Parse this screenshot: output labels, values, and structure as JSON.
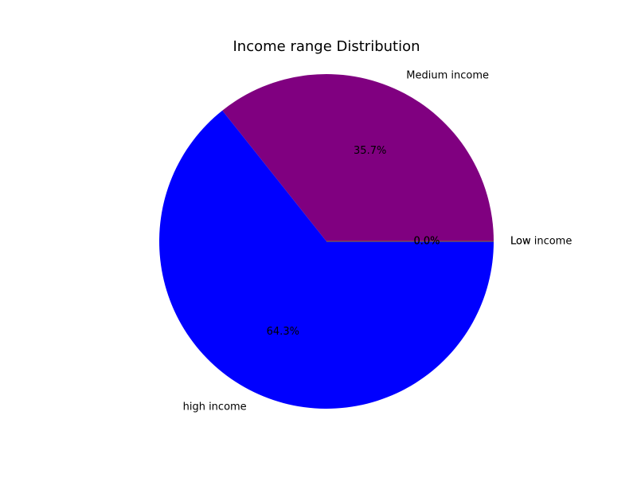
{
  "chart_data": {
    "type": "pie",
    "title": "Income range Distribution",
    "start_angle_deg": 0,
    "direction": "counterclockwise",
    "slices": [
      {
        "label": "Medium income",
        "value": 35.7,
        "pct_label": "35.7%",
        "color": "#800080"
      },
      {
        "label": "high income",
        "value": 64.3,
        "pct_label": "64.3%",
        "color": "#0000ff"
      },
      {
        "label": "Low",
        "value": 0.0,
        "pct_label": "0.0%",
        "color": "#008000"
      },
      {
        "label": "Low income",
        "value": 0.0,
        "pct_label": "0.0%",
        "color": "#ffa500"
      }
    ]
  }
}
